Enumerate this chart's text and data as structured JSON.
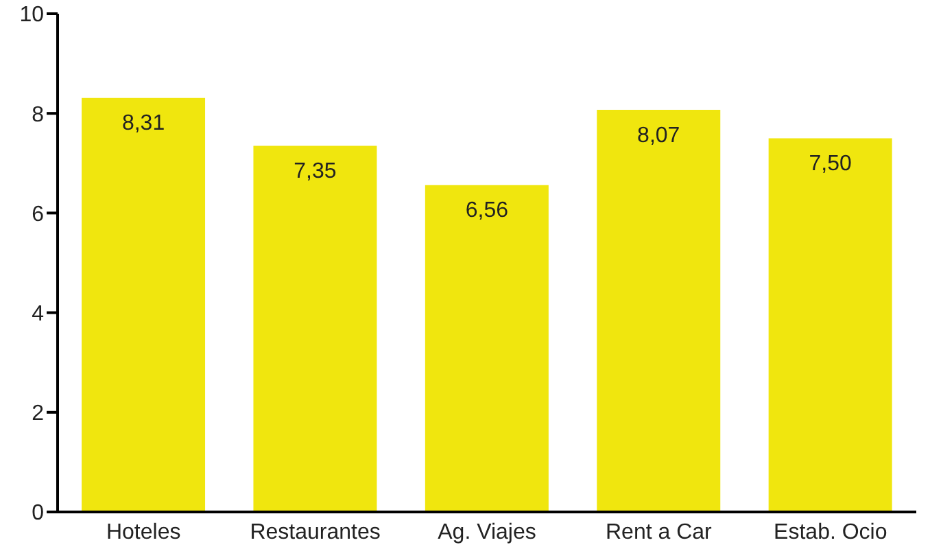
{
  "chart_data": {
    "type": "bar",
    "categories": [
      "Hoteles",
      "Restaurantes",
      "Ag. Viajes",
      "Rent a Car",
      "Estab. Ocio"
    ],
    "values": [
      8.31,
      7.35,
      6.56,
      8.07,
      7.5
    ],
    "value_labels": [
      "8,31",
      "7,35",
      "6,56",
      "8,07",
      "7,50"
    ],
    "color": "#f0e60e",
    "ylim": [
      0,
      10
    ],
    "yticks": [
      0,
      2,
      4,
      6,
      8,
      10
    ],
    "grid": false,
    "legend": false
  }
}
